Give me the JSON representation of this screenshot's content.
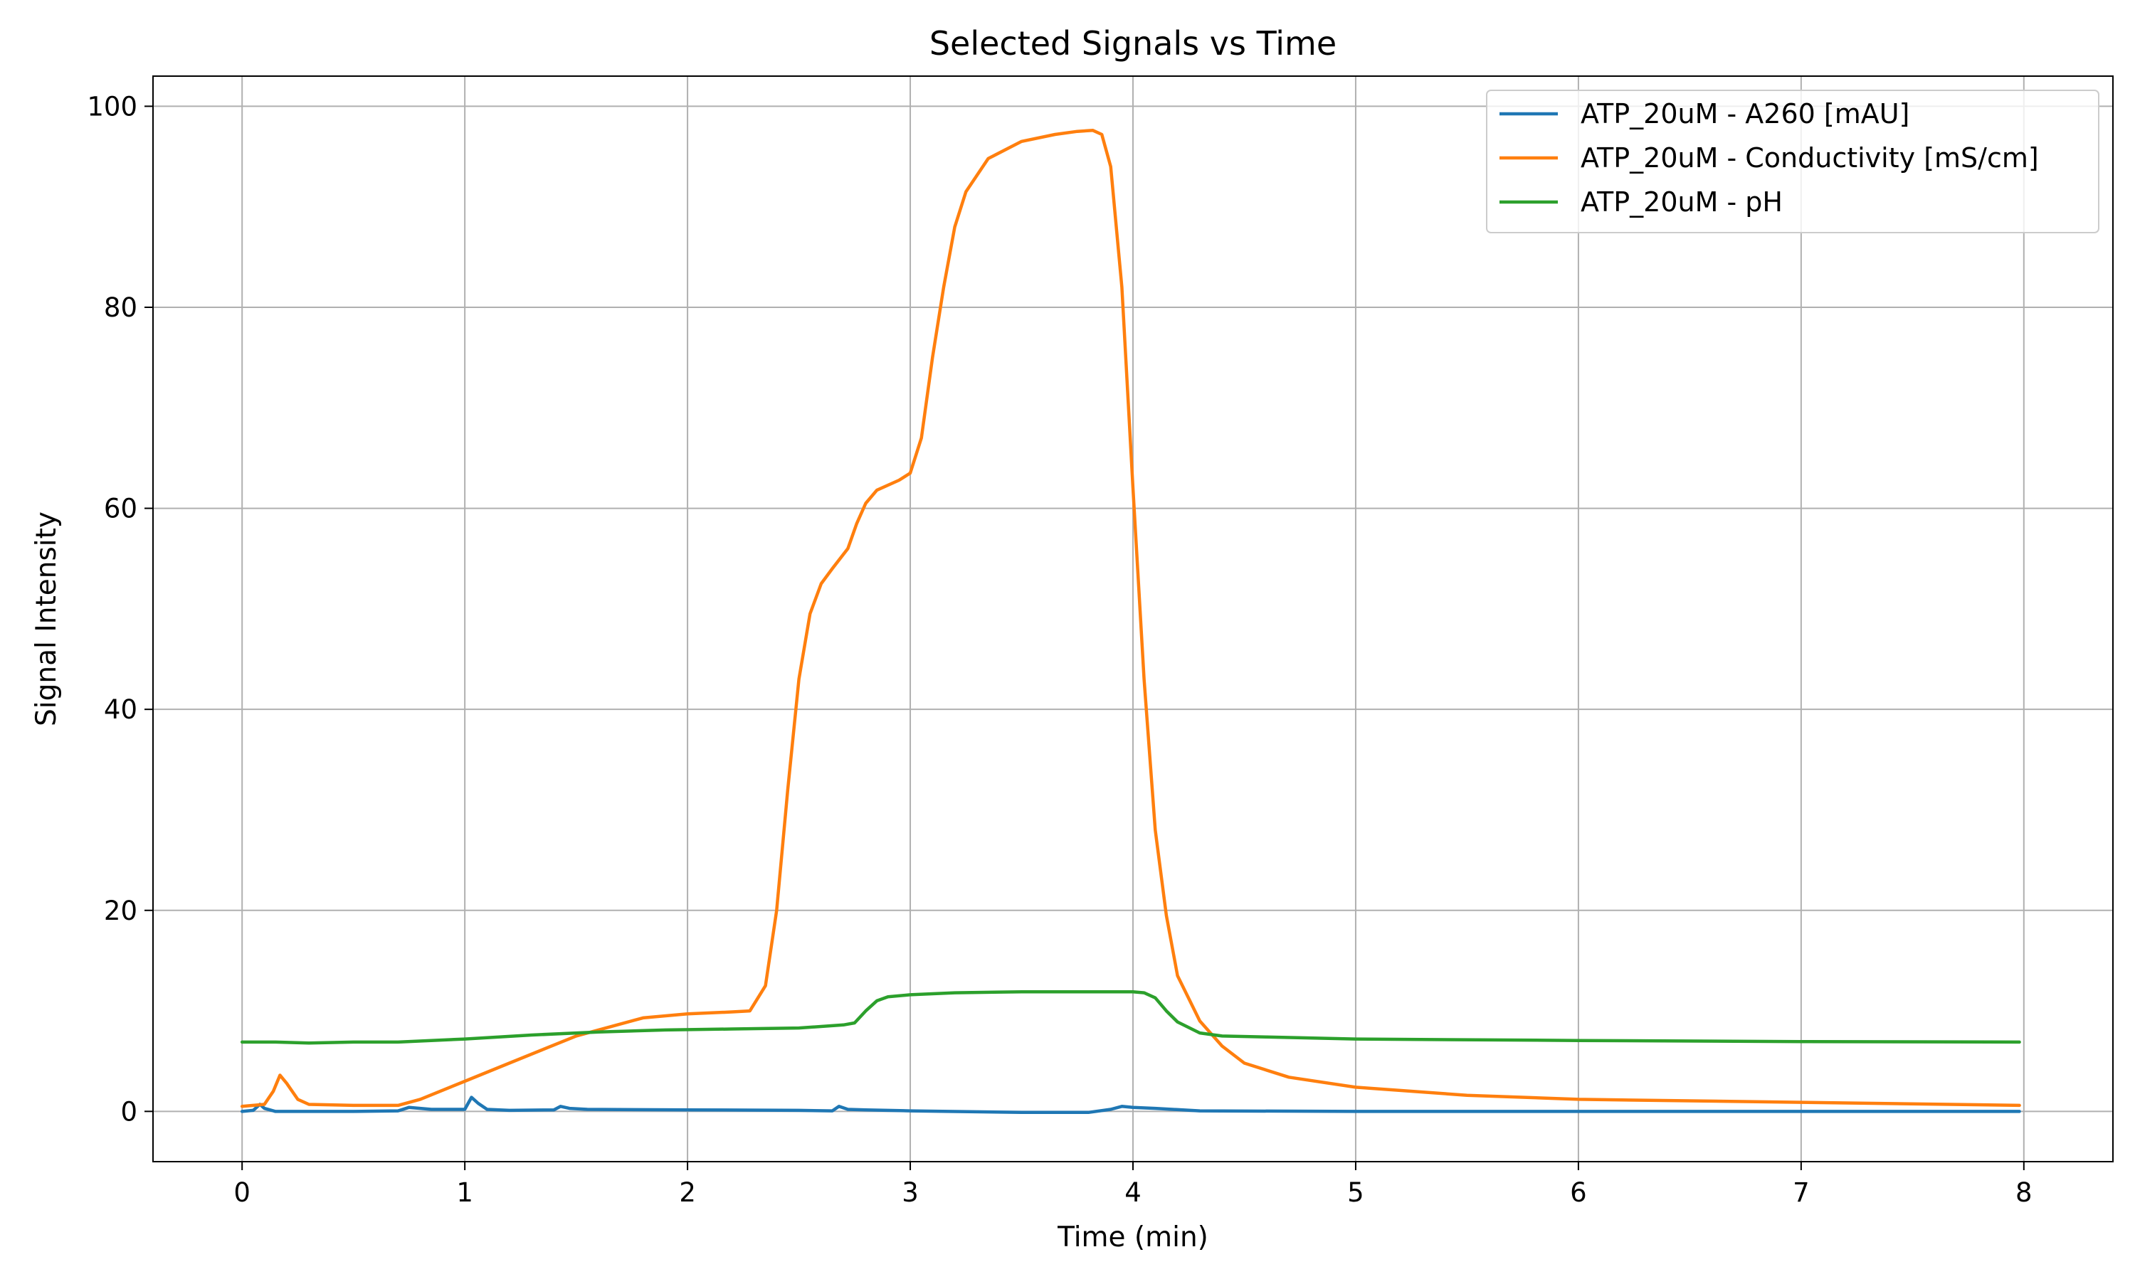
{
  "chart_data": {
    "type": "line",
    "title": "Selected Signals vs Time",
    "xlabel": "Time (min)",
    "ylabel": "Signal Intensity",
    "xlim": [
      -0.4,
      8.4
    ],
    "ylim": [
      -5,
      103
    ],
    "xticks": [
      0,
      1,
      2,
      3,
      4,
      5,
      6,
      7,
      8
    ],
    "yticks": [
      0,
      20,
      40,
      60,
      80,
      100
    ],
    "grid": true,
    "legend_position": "top-right",
    "series": [
      {
        "name": "ATP_20uM - A260 [mAU]",
        "color": "#1f77b4",
        "x": [
          0,
          0.05,
          0.08,
          0.1,
          0.15,
          0.3,
          0.5,
          0.7,
          0.75,
          0.85,
          1.0,
          1.03,
          1.06,
          1.1,
          1.2,
          1.4,
          1.43,
          1.47,
          1.55,
          2.0,
          2.5,
          2.65,
          2.68,
          2.72,
          2.8,
          3.0,
          3.5,
          3.8,
          3.9,
          3.95,
          4.0,
          4.1,
          4.3,
          5.0,
          6.0,
          7.0,
          7.98
        ],
        "y": [
          0.0,
          0.1,
          0.7,
          0.3,
          0.0,
          0.0,
          0.0,
          0.05,
          0.4,
          0.2,
          0.2,
          1.4,
          0.8,
          0.2,
          0.1,
          0.15,
          0.5,
          0.3,
          0.2,
          0.15,
          0.1,
          0.05,
          0.5,
          0.2,
          0.15,
          0.05,
          -0.1,
          -0.1,
          0.2,
          0.5,
          0.4,
          0.3,
          0.05,
          0.0,
          0.0,
          0.0,
          0.0
        ]
      },
      {
        "name": "ATP_20uM - Conductivity [mS/cm]",
        "color": "#ff7f0e",
        "x": [
          0,
          0.1,
          0.14,
          0.17,
          0.2,
          0.25,
          0.3,
          0.5,
          0.7,
          0.8,
          1.0,
          1.2,
          1.5,
          1.8,
          2.0,
          2.2,
          2.28,
          2.35,
          2.4,
          2.45,
          2.5,
          2.55,
          2.6,
          2.65,
          2.72,
          2.76,
          2.8,
          2.85,
          2.95,
          3.0,
          3.05,
          3.1,
          3.15,
          3.2,
          3.25,
          3.35,
          3.5,
          3.65,
          3.75,
          3.82,
          3.86,
          3.9,
          3.95,
          4.0,
          4.05,
          4.1,
          4.15,
          4.2,
          4.3,
          4.4,
          4.5,
          4.7,
          5.0,
          5.5,
          6.0,
          7.0,
          7.98
        ],
        "y": [
          0.5,
          0.7,
          2.0,
          3.6,
          2.8,
          1.2,
          0.7,
          0.6,
          0.6,
          1.2,
          3.0,
          4.8,
          7.5,
          9.3,
          9.7,
          9.9,
          10.0,
          12.5,
          20.0,
          32.0,
          43.0,
          49.5,
          52.5,
          54.0,
          56.0,
          58.5,
          60.5,
          61.8,
          62.8,
          63.5,
          67.0,
          75.0,
          82.0,
          88.0,
          91.5,
          94.8,
          96.5,
          97.2,
          97.5,
          97.6,
          97.2,
          94.0,
          82.0,
          62.0,
          43.0,
          28.0,
          19.5,
          13.5,
          9.0,
          6.5,
          4.8,
          3.4,
          2.4,
          1.6,
          1.2,
          0.9,
          0.6
        ]
      },
      {
        "name": "ATP_20uM - pH",
        "color": "#2ca02c",
        "x": [
          0,
          0.15,
          0.3,
          0.5,
          0.7,
          1.0,
          1.3,
          1.6,
          1.9,
          2.2,
          2.5,
          2.7,
          2.75,
          2.8,
          2.85,
          2.9,
          3.0,
          3.2,
          3.5,
          3.8,
          3.9,
          4.0,
          4.05,
          4.1,
          4.15,
          4.2,
          4.3,
          4.4,
          4.6,
          5.0,
          6.0,
          7.0,
          7.98
        ],
        "y": [
          6.9,
          6.9,
          6.8,
          6.9,
          6.9,
          7.2,
          7.6,
          7.9,
          8.1,
          8.2,
          8.3,
          8.6,
          8.8,
          10.0,
          11.0,
          11.4,
          11.6,
          11.8,
          11.9,
          11.9,
          11.9,
          11.9,
          11.8,
          11.3,
          10.0,
          8.9,
          7.8,
          7.5,
          7.4,
          7.2,
          7.05,
          6.95,
          6.9
        ]
      }
    ]
  }
}
